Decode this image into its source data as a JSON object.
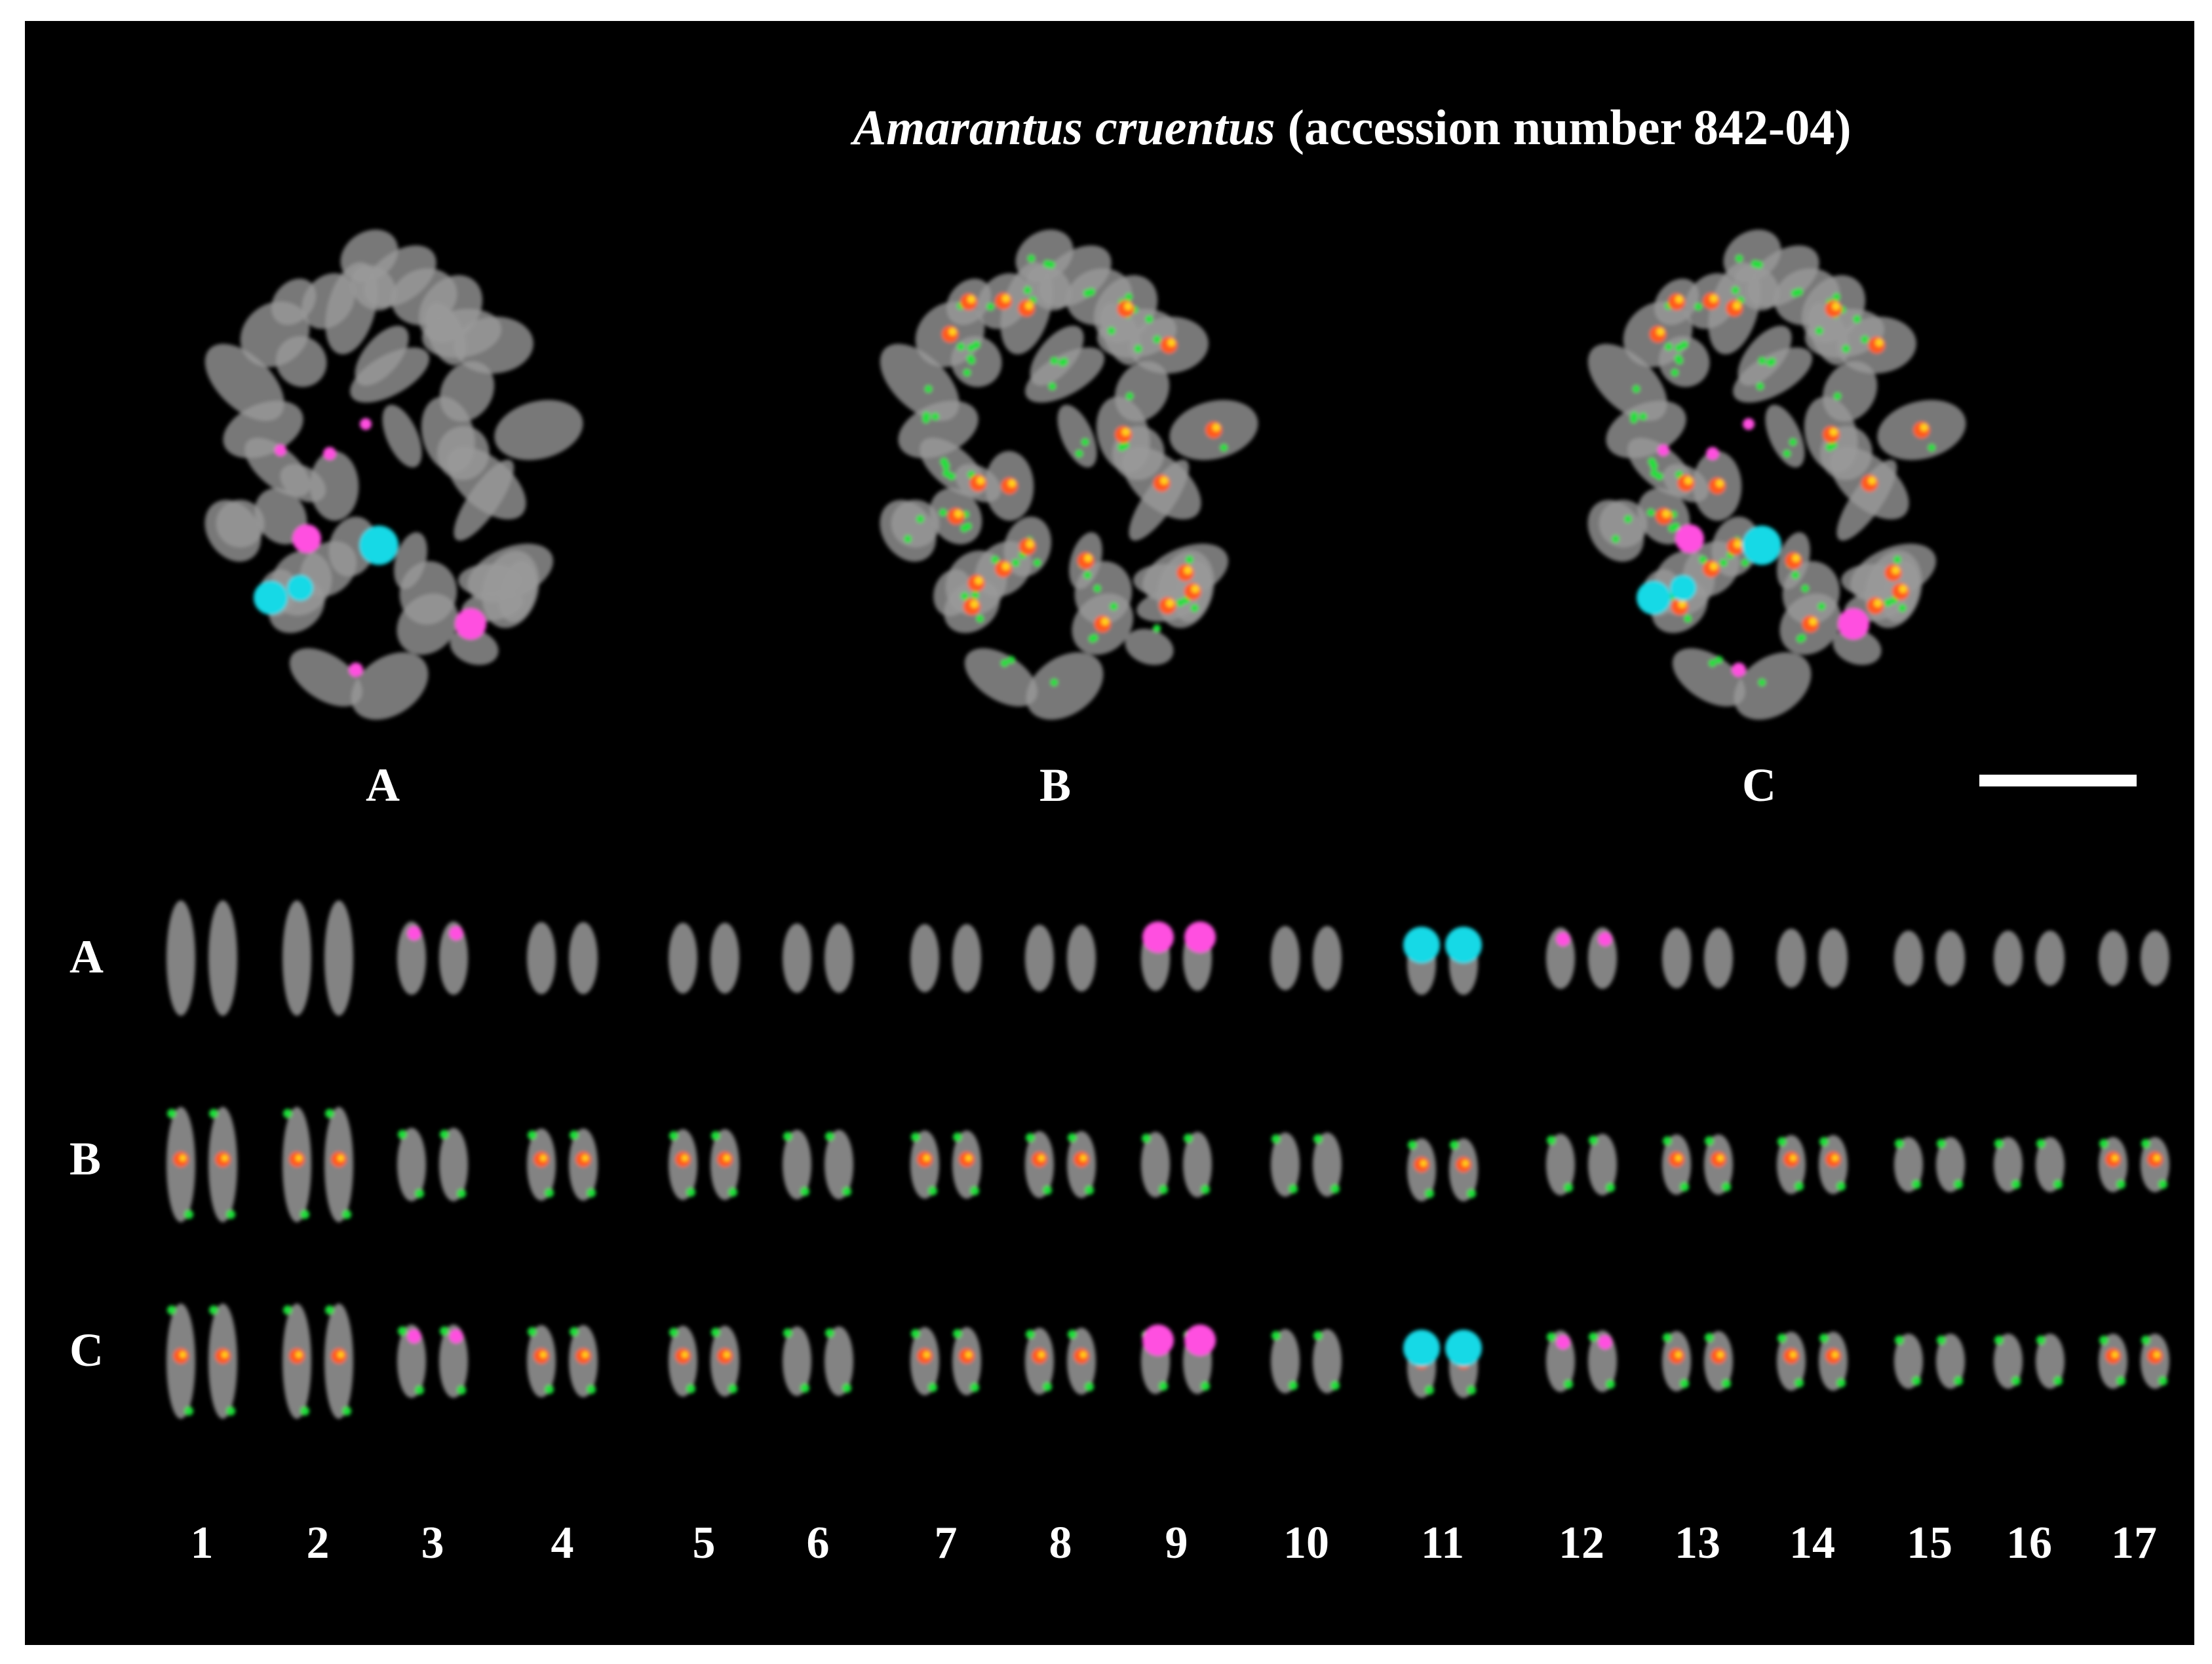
{
  "figure": {
    "title_species": "Amarantus cruentus",
    "title_rest": " (accession number 842-04)",
    "panel_labels": [
      "A",
      "B",
      "C"
    ],
    "row_labels": [
      "A",
      "B",
      "C"
    ],
    "chromosome_numbers": [
      "1",
      "2",
      "3",
      "4",
      "5",
      "6",
      "7",
      "8",
      "9",
      "10",
      "11",
      "12",
      "13",
      "14",
      "15",
      "16",
      "17"
    ]
  },
  "colors": {
    "background": "#000000",
    "chromatin": "#9a9a9a",
    "probe_magenta": "#ff4fe0",
    "probe_cyan": "#19d9e6",
    "probe_green": "#1fe03a",
    "probe_red": "#ff5a1a",
    "probe_yellow": "#ffd21a"
  }
}
